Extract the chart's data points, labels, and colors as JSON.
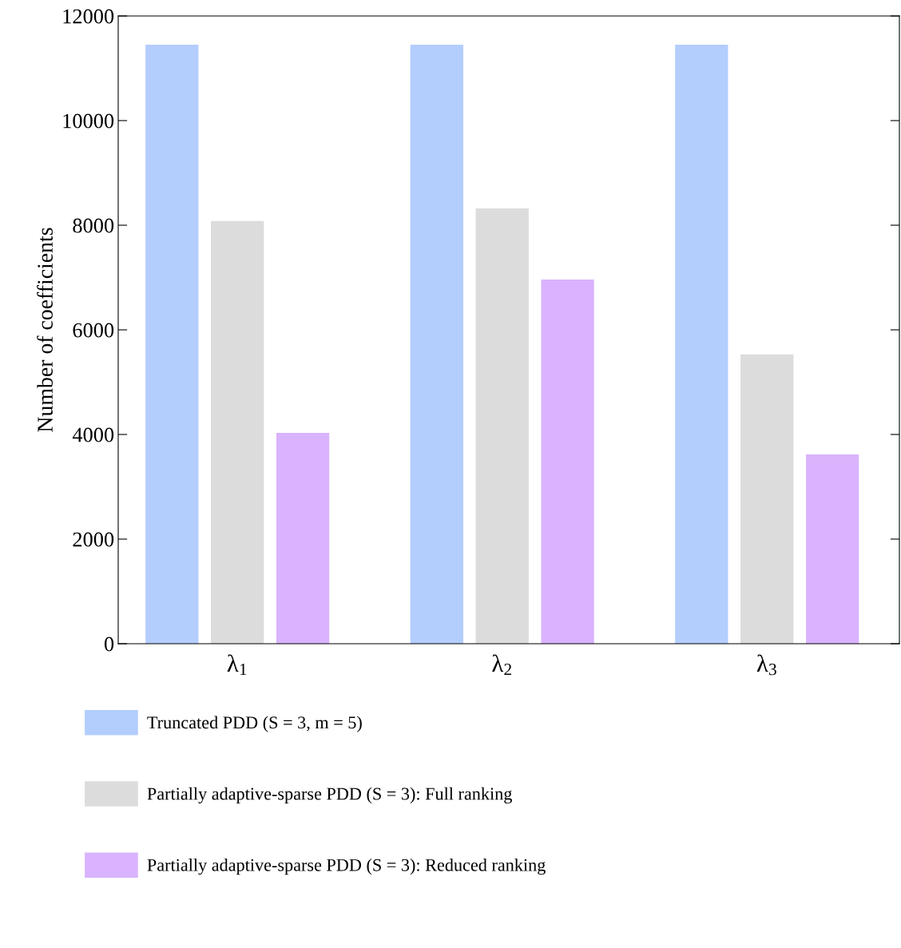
{
  "chart_data": {
    "type": "bar",
    "ylabel": "Number of coefficients",
    "categories": [
      "λ$_{1}$",
      "λ$_{2}$",
      "λ$_{3}$"
    ],
    "series": [
      {
        "name": "Truncated PDD (S = 3, m = 5)",
        "color": "#b3cdfd",
        "values": [
          11450,
          11450,
          11450
        ]
      },
      {
        "name": "Partially adaptive-sparse PDD (S = 3): Full ranking",
        "color": "#dcdcdc",
        "values": [
          8080,
          8320,
          5530
        ]
      },
      {
        "name": "Partially adaptive-sparse PDD (S = 3): Reduced ranking",
        "color": "#d9b3fd",
        "values": [
          4030,
          6960,
          3620
        ]
      }
    ],
    "ylim": [
      0,
      12000
    ],
    "yticks": [
      0,
      2000,
      4000,
      6000,
      8000,
      10000,
      12000
    ],
    "grid": false,
    "legend": "bottom"
  }
}
